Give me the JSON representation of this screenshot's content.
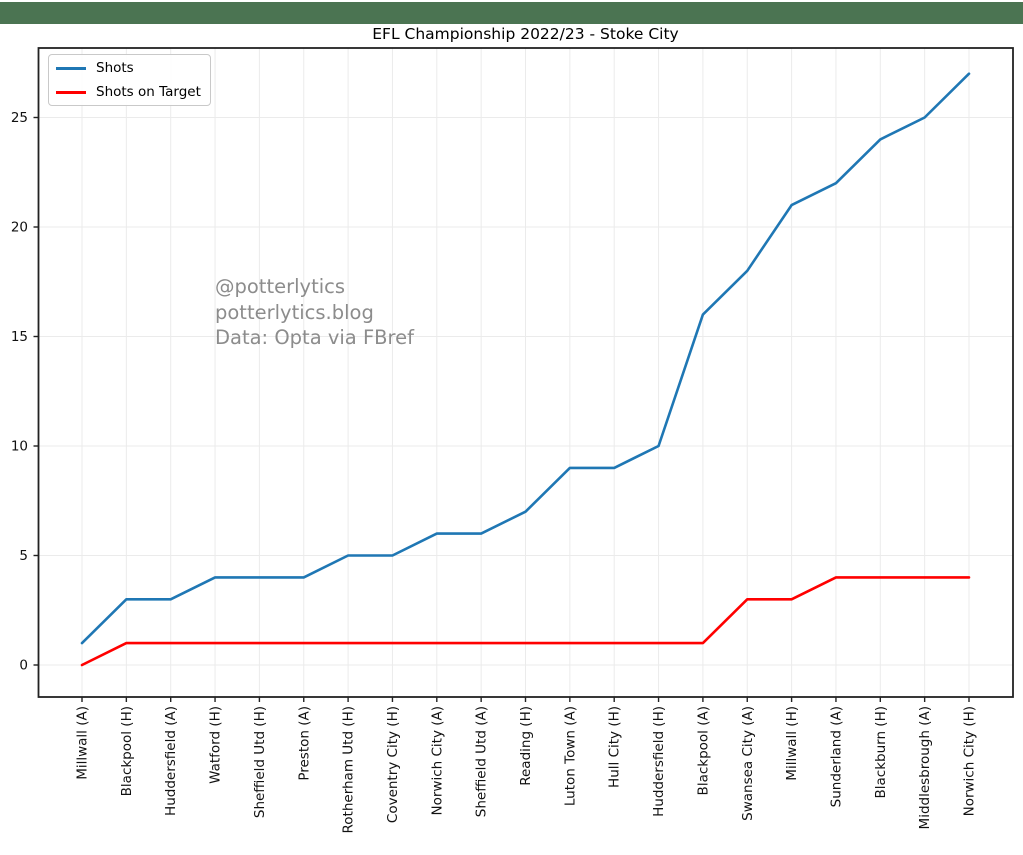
{
  "banner": {
    "color": "#4b7452"
  },
  "watermark": {
    "color": "#8c8c8c",
    "lines": [
      "@potterlytics",
      "potterlytics.blog",
      "Data: Opta via FBref"
    ]
  },
  "chart_data": {
    "type": "line",
    "title": "EFL Championship 2022/23 - Stoke City",
    "xlabel": "",
    "ylabel": "",
    "categories": [
      "Millwall (A)",
      "Blackpool (H)",
      "Huddersfield (A)",
      "Watford (H)",
      "Sheffield Utd (H)",
      "Preston (A)",
      "Rotherham Utd (H)",
      "Coventry City (H)",
      "Norwich City (A)",
      "Sheffield Utd (A)",
      "Reading (H)",
      "Luton Town (A)",
      "Hull City (H)",
      "Huddersfield (H)",
      "Blackpool (A)",
      "Swansea City (A)",
      "Millwall (H)",
      "Sunderland (A)",
      "Blackburn (H)",
      "Middlesbrough (A)",
      "Norwich City (H)"
    ],
    "series": [
      {
        "name": "Shots",
        "color": "#1f77b4",
        "values": [
          1,
          3,
          3,
          4,
          4,
          4,
          5,
          5,
          6,
          6,
          7,
          9,
          9,
          10,
          16,
          18,
          21,
          22,
          24,
          25,
          27
        ]
      },
      {
        "name": "Shots on Target",
        "color": "#ff0000",
        "values": [
          0,
          1,
          1,
          1,
          1,
          1,
          1,
          1,
          1,
          1,
          1,
          1,
          1,
          1,
          1,
          3,
          3,
          4,
          4,
          4,
          4
        ]
      }
    ],
    "yticks": [
      0,
      5,
      10,
      15,
      20,
      25
    ],
    "ylim": [
      -1.5,
      28.2
    ],
    "grid": true,
    "gridline_color": "#ebebeb",
    "spine_color": "#222222",
    "legend_position": "upper-left",
    "x_tick_rotation": 90
  }
}
